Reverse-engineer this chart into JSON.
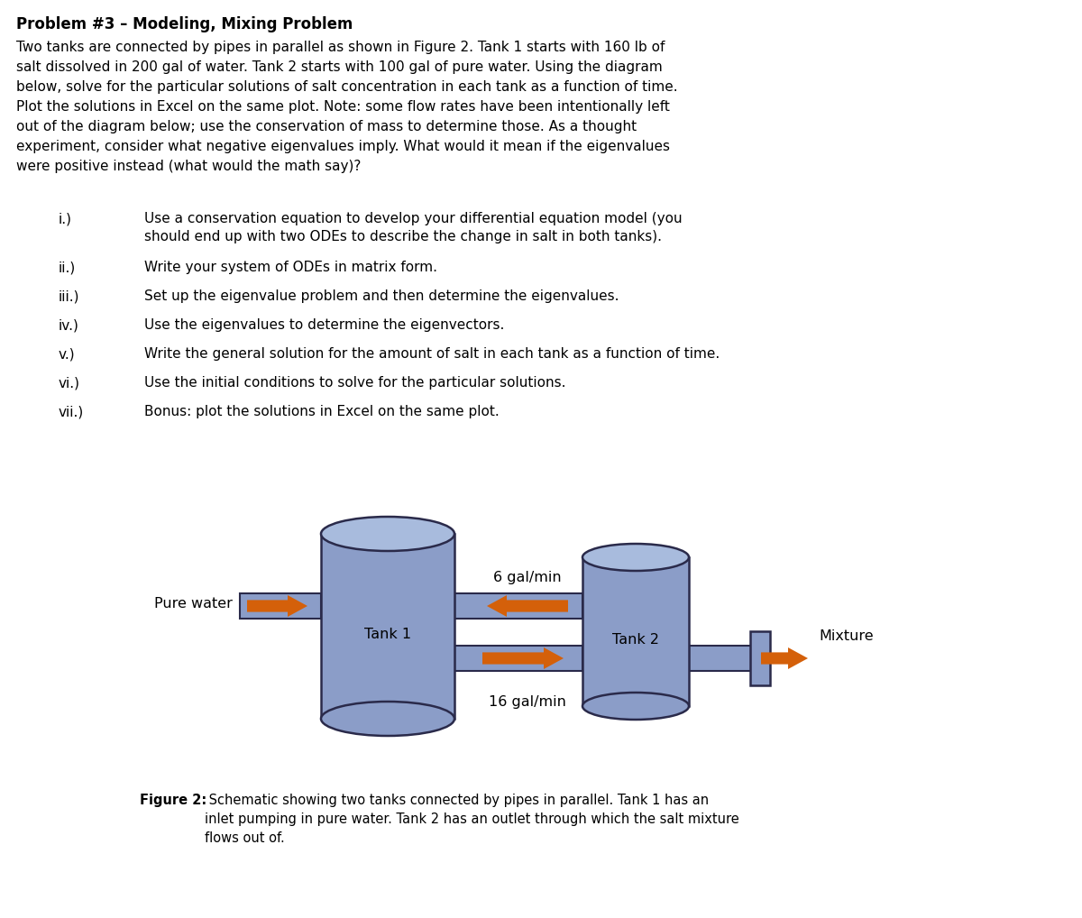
{
  "title": "Problem #3 – Modeling, Mixing Problem",
  "intro_lines": [
    "Two tanks are connected by pipes in parallel as shown in Figure 2. Tank 1 starts with 160 lb of",
    "salt dissolved in 200 gal of water. Tank 2 starts with 100 gal of pure water. Using the diagram",
    "below, solve for the particular solutions of salt concentration in each tank as a function of time.",
    "Plot the solutions in Excel on the same plot. Note: some flow rates have been intentionally left",
    "out of the diagram below; use the conservation of mass to determine those. As a thought",
    "experiment, consider what negative eigenvalues imply. What would it mean if the eigenvalues",
    "were positive instead (what would the math say)?"
  ],
  "items": [
    {
      "label": "i.)",
      "text": "Use a conservation equation to develop your differential equation model (you\nshould end up with two ODEs to describe the change in salt in both tanks)."
    },
    {
      "label": "ii.)",
      "text": "Write your system of ODEs in matrix form."
    },
    {
      "label": "iii.)",
      "text": "Set up the eigenvalue problem and then determine the eigenvalues."
    },
    {
      "label": "iv.)",
      "text": "Use the eigenvalues to determine the eigenvectors."
    },
    {
      "label": "v.)",
      "text": "Write the general solution for the amount of salt in each tank as a function of time."
    },
    {
      "label": "vi.)",
      "text": "Use the initial conditions to solve for the particular solutions."
    },
    {
      "label": "vii.)",
      "text": "Bonus: plot the solutions in Excel on the same plot."
    }
  ],
  "tank_color": "#8B9DC8",
  "tank_top_color": "#A8BBDD",
  "tank_outline": "#2a2a4a",
  "pipe_color": "#8B9DC8",
  "pipe_outline": "#2a2a4a",
  "arrow_color": "#D4600A",
  "tank1_label": "Tank 1",
  "tank2_label": "Tank 2",
  "pure_water_label": "Pure water",
  "mixture_label": "Mixture",
  "flow_top": "6 gal/min",
  "flow_bottom": "16 gal/min",
  "figure_caption_bold": "Figure 2:",
  "figure_caption_rest": " Schematic showing two tanks connected by pipes in parallel. Tank 1 has an\ninlet pumping in pure water. Tank 2 has an outlet through which the salt mixture\nflows out of.",
  "bg_color": "#FFFFFF",
  "text_color": "#000000",
  "title_fontsize": 12,
  "body_fontsize": 11,
  "item_fontsize": 11,
  "caption_fontsize": 10.5
}
